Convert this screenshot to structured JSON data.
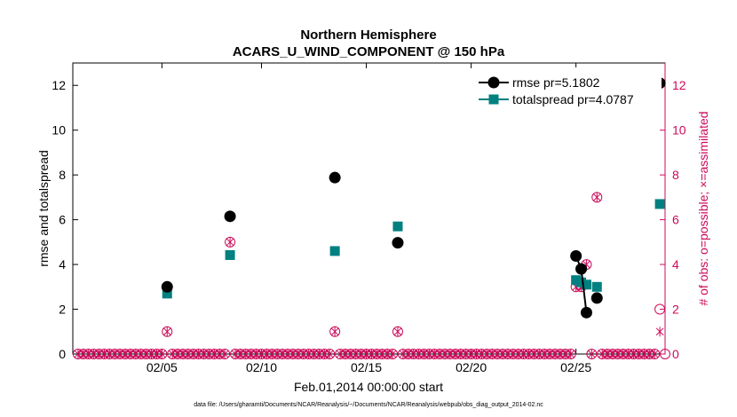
{
  "chart_data": {
    "type": "scatter",
    "title": "Northern Hemisphere",
    "subtitle": "ACARS_U_WIND_COMPONENT @ 150 hPa",
    "xlabel": "Feb.01,2014 00:00:00 start",
    "ylabel": "rmse and totalspread",
    "ylabel_right": "# of obs: o=possible; ×=assimilated",
    "footnote": "data file: /Users/gharamti/Documents/NCAR/Reanalysis/~/Documents/NCAR/Reanalysis/webpub/obs_diag_output_2014-02.nc",
    "xlim": [
      1,
      29.25
    ],
    "ylim": [
      0,
      13
    ],
    "ylim_right": [
      0,
      13
    ],
    "xticks": [
      5.25,
      10,
      15,
      20,
      25
    ],
    "xtick_labels": [
      "02/05",
      "02/10",
      "02/15",
      "02/20",
      "02/25"
    ],
    "yticks": [
      0,
      2,
      4,
      6,
      8,
      10,
      12
    ],
    "legend_loc": "top-right",
    "colors": {
      "rmse": "#000000",
      "totalspread": "#008080",
      "obs": "#cc0a5a",
      "axis_right": "#cc0a5a"
    },
    "series": [
      {
        "name": "rmse pr=5.1802",
        "marker": "circle",
        "color": "#000000",
        "points": [
          [
            5.5,
            3.0
          ],
          [
            8.5,
            6.15
          ],
          [
            13.5,
            7.88
          ],
          [
            16.5,
            4.97
          ],
          [
            25.0,
            4.38
          ],
          [
            25.25,
            3.8
          ],
          [
            25.5,
            1.85
          ],
          [
            26.0,
            2.5
          ],
          [
            29.0,
            12.1
          ]
        ],
        "line_segments": [
          [
            4,
            5,
            6
          ]
        ]
      },
      {
        "name": "totalspread pr=4.0787",
        "marker": "square",
        "color": "#008080",
        "points": [
          [
            5.5,
            2.7
          ],
          [
            8.5,
            4.42
          ],
          [
            13.5,
            4.6
          ],
          [
            16.5,
            5.7
          ],
          [
            25.0,
            3.3
          ],
          [
            25.25,
            3.2
          ],
          [
            25.5,
            3.1
          ],
          [
            26.0,
            3.0
          ],
          [
            29.0,
            6.7
          ]
        ]
      },
      {
        "name": "obs possible/assimilated",
        "color": "#cc0a5a",
        "axis": "right",
        "points": [
          [
            5.5,
            1,
            1
          ],
          [
            8.5,
            5,
            5
          ],
          [
            13.5,
            1,
            1
          ],
          [
            16.5,
            1,
            1
          ],
          [
            25.0,
            3,
            3
          ],
          [
            25.25,
            3,
            3
          ],
          [
            25.5,
            4,
            4
          ],
          [
            26.0,
            7,
            7
          ],
          [
            29.0,
            2,
            1
          ]
        ],
        "zero_x_start": 1.25,
        "zero_x_end": 29.25,
        "zero_x_step": 0.25,
        "zero_hollow_x": [
          29.25
        ]
      }
    ]
  }
}
